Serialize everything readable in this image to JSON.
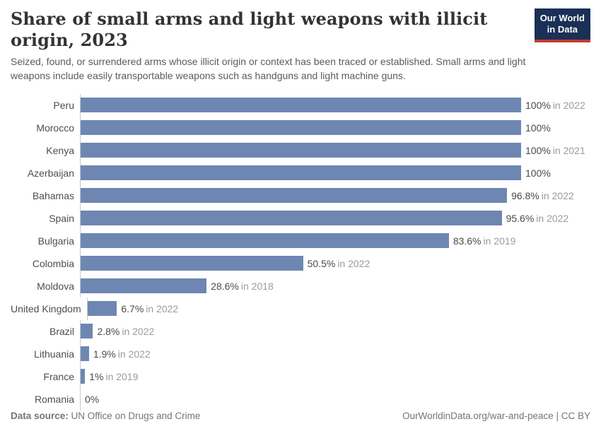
{
  "header": {
    "title": "Share of small arms and light weapons with illicit origin, 2023",
    "subtitle": "Seized, found, or surrendered arms whose illicit origin or context has been traced or established. Small arms and light weapons include easily transportable weapons such as handguns and light machine guns.",
    "logo": {
      "line1": "Our World",
      "line2": "in Data",
      "bg_color": "#1a3056",
      "accent_color": "#c23b33"
    }
  },
  "chart_data": {
    "type": "bar",
    "orientation": "horizontal",
    "title": "Share of small arms and light weapons with illicit origin, 2023",
    "xlim": [
      0,
      100
    ],
    "grid": false,
    "bar_color": "#6e87b2",
    "categories": [
      "Peru",
      "Morocco",
      "Kenya",
      "Azerbaijan",
      "Bahamas",
      "Spain",
      "Bulgaria",
      "Colombia",
      "Moldova",
      "United Kingdom",
      "Brazil",
      "Lithuania",
      "France",
      "Romania"
    ],
    "values": [
      100,
      100,
      100,
      100,
      96.8,
      95.6,
      83.6,
      50.5,
      28.6,
      6.7,
      2.8,
      1.9,
      1,
      0
    ],
    "rows": [
      {
        "country": "Peru",
        "value": 100,
        "label": "100%",
        "year": "in 2022"
      },
      {
        "country": "Morocco",
        "value": 100,
        "label": "100%",
        "year": ""
      },
      {
        "country": "Kenya",
        "value": 100,
        "label": "100%",
        "year": "in 2021"
      },
      {
        "country": "Azerbaijan",
        "value": 100,
        "label": "100%",
        "year": ""
      },
      {
        "country": "Bahamas",
        "value": 96.8,
        "label": "96.8%",
        "year": "in 2022"
      },
      {
        "country": "Spain",
        "value": 95.6,
        "label": "95.6%",
        "year": "in 2022"
      },
      {
        "country": "Bulgaria",
        "value": 83.6,
        "label": "83.6%",
        "year": "in 2019"
      },
      {
        "country": "Colombia",
        "value": 50.5,
        "label": "50.5%",
        "year": "in 2022"
      },
      {
        "country": "Moldova",
        "value": 28.6,
        "label": "28.6%",
        "year": "in 2018"
      },
      {
        "country": "United Kingdom",
        "value": 6.7,
        "label": "6.7%",
        "year": "in 2022"
      },
      {
        "country": "Brazil",
        "value": 2.8,
        "label": "2.8%",
        "year": "in 2022"
      },
      {
        "country": "Lithuania",
        "value": 1.9,
        "label": "1.9%",
        "year": "in 2022"
      },
      {
        "country": "France",
        "value": 1,
        "label": "1%",
        "year": "in 2019"
      },
      {
        "country": "Romania",
        "value": 0,
        "label": "0%",
        "year": ""
      }
    ]
  },
  "footer": {
    "source_label": "Data source:",
    "source": "UN Office on Drugs and Crime",
    "right": "OurWorldinData.org/war-and-peace | CC BY"
  }
}
